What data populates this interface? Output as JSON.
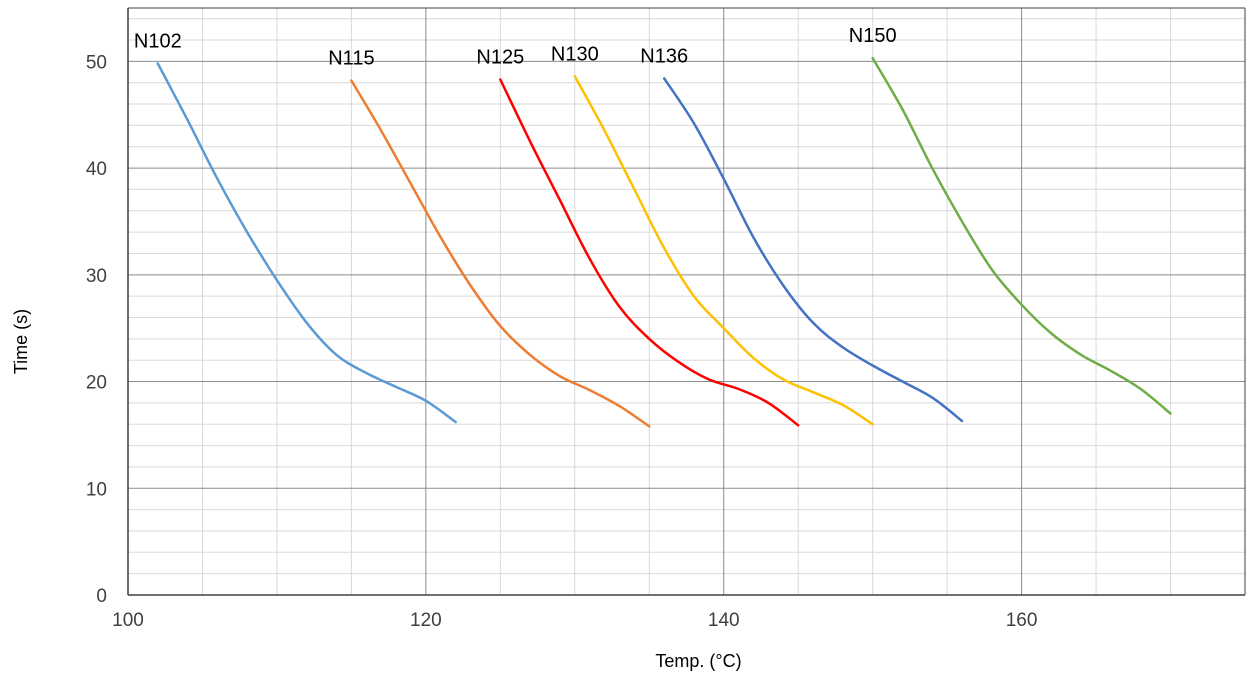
{
  "chart_data": {
    "type": "line",
    "title": "",
    "xlabel": "Temp. (°C)",
    "ylabel": "Time (s)",
    "xlim": [
      100,
      175
    ],
    "ylim": [
      0,
      55
    ],
    "x_ticks": [
      100,
      120,
      140,
      160
    ],
    "y_ticks": [
      0,
      10,
      20,
      30,
      40,
      50
    ],
    "x_major_step": 20,
    "x_minor_step": 5,
    "y_major_step": 10,
    "y_minor_step": 2,
    "grid": true,
    "legend": "none",
    "series": [
      {
        "name": "N102",
        "color": "#5B9BD5",
        "points": [
          [
            102,
            49.8
          ],
          [
            104,
            44.5
          ],
          [
            106,
            39
          ],
          [
            108,
            34
          ],
          [
            110,
            29.5
          ],
          [
            112,
            25.5
          ],
          [
            114,
            22.5
          ],
          [
            116,
            20.8
          ],
          [
            118,
            19.5
          ],
          [
            120,
            18.2
          ],
          [
            122,
            16.2
          ]
        ]
      },
      {
        "name": "N115",
        "color": "#ED7D31",
        "points": [
          [
            115,
            48.2
          ],
          [
            117,
            43.5
          ],
          [
            119,
            38.5
          ],
          [
            121,
            33.5
          ],
          [
            123,
            29
          ],
          [
            125,
            25.2
          ],
          [
            127,
            22.5
          ],
          [
            129,
            20.5
          ],
          [
            131,
            19.2
          ],
          [
            133,
            17.7
          ],
          [
            135,
            15.8
          ]
        ]
      },
      {
        "name": "N125",
        "color": "#FF0000",
        "points": [
          [
            125,
            48.3
          ],
          [
            127,
            42.5
          ],
          [
            129,
            37
          ],
          [
            131,
            31.5
          ],
          [
            133,
            27
          ],
          [
            135,
            24
          ],
          [
            137,
            21.8
          ],
          [
            139,
            20.2
          ],
          [
            141,
            19.3
          ],
          [
            143,
            18
          ],
          [
            145,
            15.9
          ]
        ]
      },
      {
        "name": "N130",
        "color": "#FFC000",
        "points": [
          [
            130,
            48.6
          ],
          [
            132,
            43.5
          ],
          [
            134,
            38
          ],
          [
            136,
            32.5
          ],
          [
            138,
            28
          ],
          [
            140,
            25
          ],
          [
            142,
            22.2
          ],
          [
            144,
            20.2
          ],
          [
            146,
            19
          ],
          [
            148,
            17.8
          ],
          [
            150,
            16
          ]
        ]
      },
      {
        "name": "N136",
        "color": "#4472C4",
        "points": [
          [
            136,
            48.4
          ],
          [
            138,
            44.2
          ],
          [
            140,
            39
          ],
          [
            142,
            33.5
          ],
          [
            144,
            29
          ],
          [
            146,
            25.5
          ],
          [
            148,
            23.2
          ],
          [
            150,
            21.5
          ],
          [
            152,
            20
          ],
          [
            154,
            18.5
          ],
          [
            156,
            16.3
          ]
        ]
      },
      {
        "name": "N150",
        "color": "#70AD47",
        "points": [
          [
            150,
            50.3
          ],
          [
            152,
            45.5
          ],
          [
            154,
            40
          ],
          [
            156,
            35
          ],
          [
            158,
            30.5
          ],
          [
            160,
            27.2
          ],
          [
            162,
            24.5
          ],
          [
            164,
            22.5
          ],
          [
            166,
            21
          ],
          [
            168,
            19.3
          ],
          [
            170,
            17
          ]
        ]
      }
    ]
  }
}
